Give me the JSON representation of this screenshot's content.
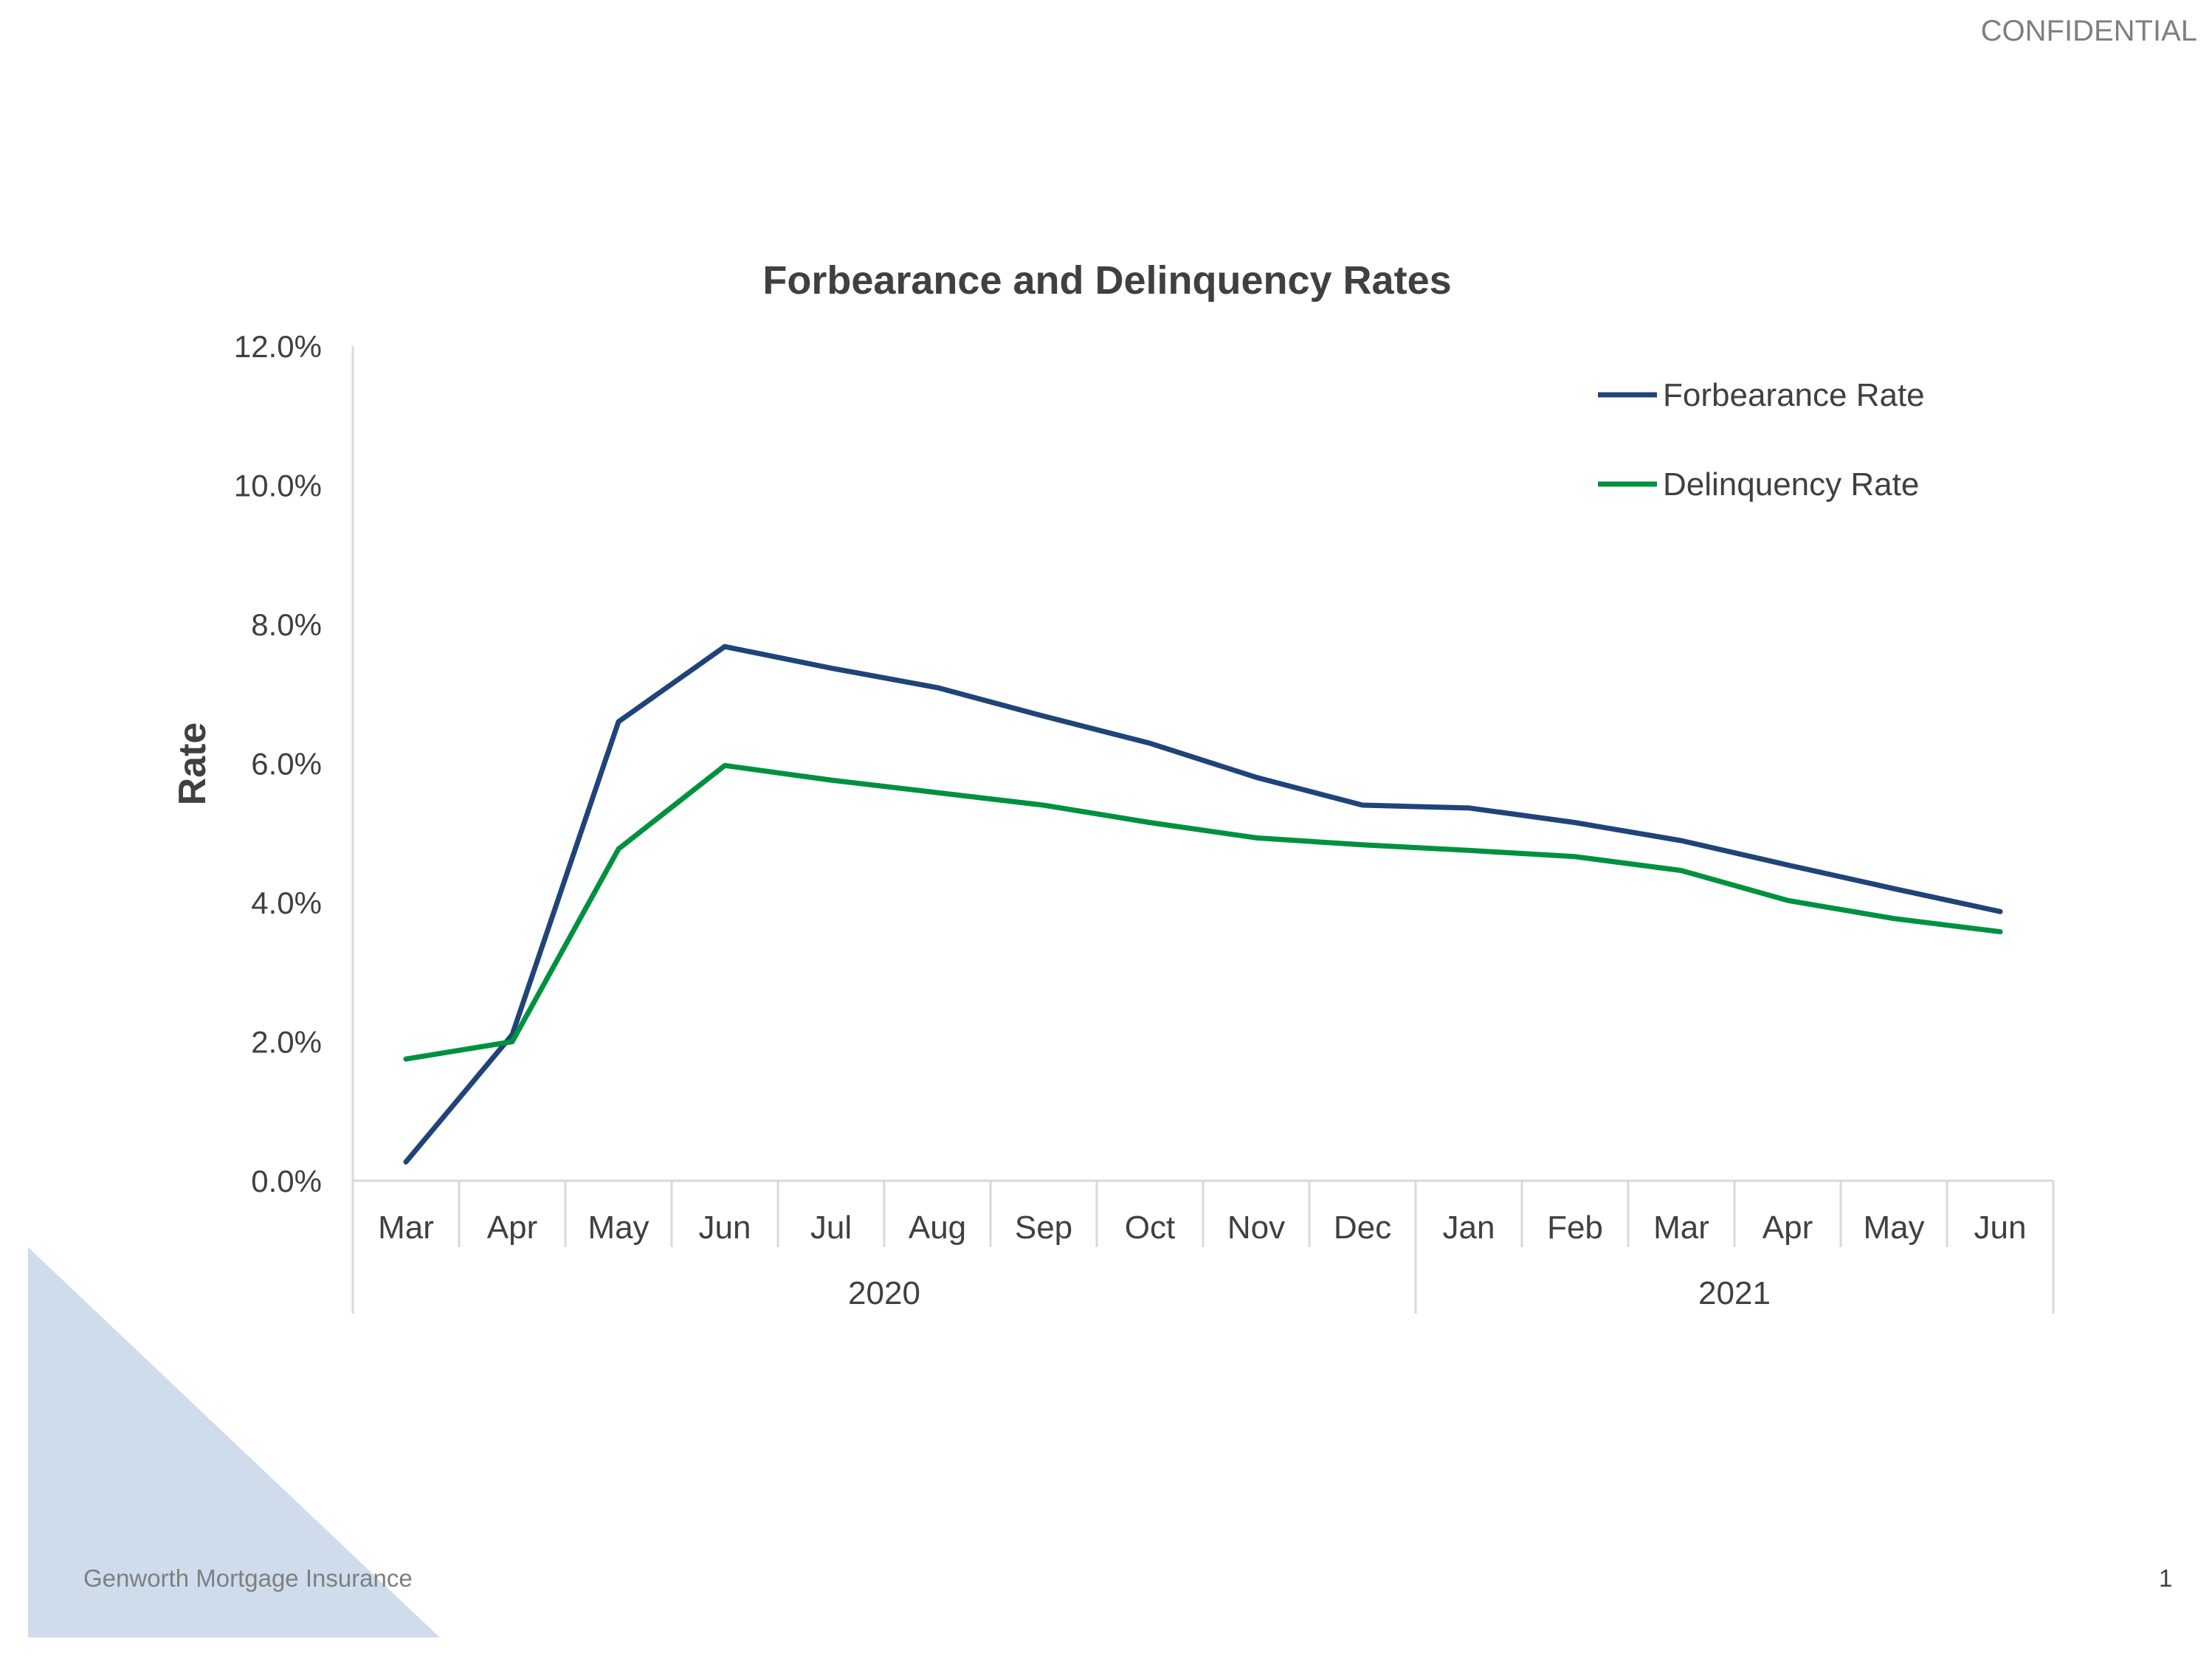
{
  "header": {
    "confidential": "CONFIDENTIAL"
  },
  "footer": {
    "company": "Genworth Mortgage Insurance",
    "page_number": "1"
  },
  "chart_data": {
    "type": "line",
    "title": "Forbearance and Delinquency Rates",
    "xlabel": "",
    "ylabel": "Rate",
    "ylim": [
      0,
      12
    ],
    "y_ticks": [
      "0.0%",
      "2.0%",
      "4.0%",
      "6.0%",
      "8.0%",
      "10.0%",
      "12.0%"
    ],
    "categories": [
      "Mar",
      "Apr",
      "May",
      "Jun",
      "Jul",
      "Aug",
      "Sep",
      "Oct",
      "Nov",
      "Dec",
      "Jan",
      "Feb",
      "Mar",
      "Apr",
      "May",
      "Jun"
    ],
    "year_groups": [
      {
        "label": "2020",
        "count": 10
      },
      {
        "label": "2021",
        "count": 6
      }
    ],
    "grid": false,
    "legend_position": "top-right",
    "series": [
      {
        "name": "Forbearance Rate",
        "color": "#1f4478",
        "values": [
          0.27,
          2.1,
          6.6,
          7.68,
          7.37,
          7.09,
          6.68,
          6.29,
          5.8,
          5.4,
          5.36,
          5.15,
          4.89,
          4.54,
          4.2,
          3.87
        ]
      },
      {
        "name": "Delinquency Rate",
        "color": "#00913f",
        "values": [
          1.75,
          2.0,
          4.77,
          5.97,
          5.76,
          5.58,
          5.4,
          5.15,
          4.93,
          4.83,
          4.75,
          4.66,
          4.46,
          4.03,
          3.77,
          3.58
        ]
      }
    ]
  }
}
